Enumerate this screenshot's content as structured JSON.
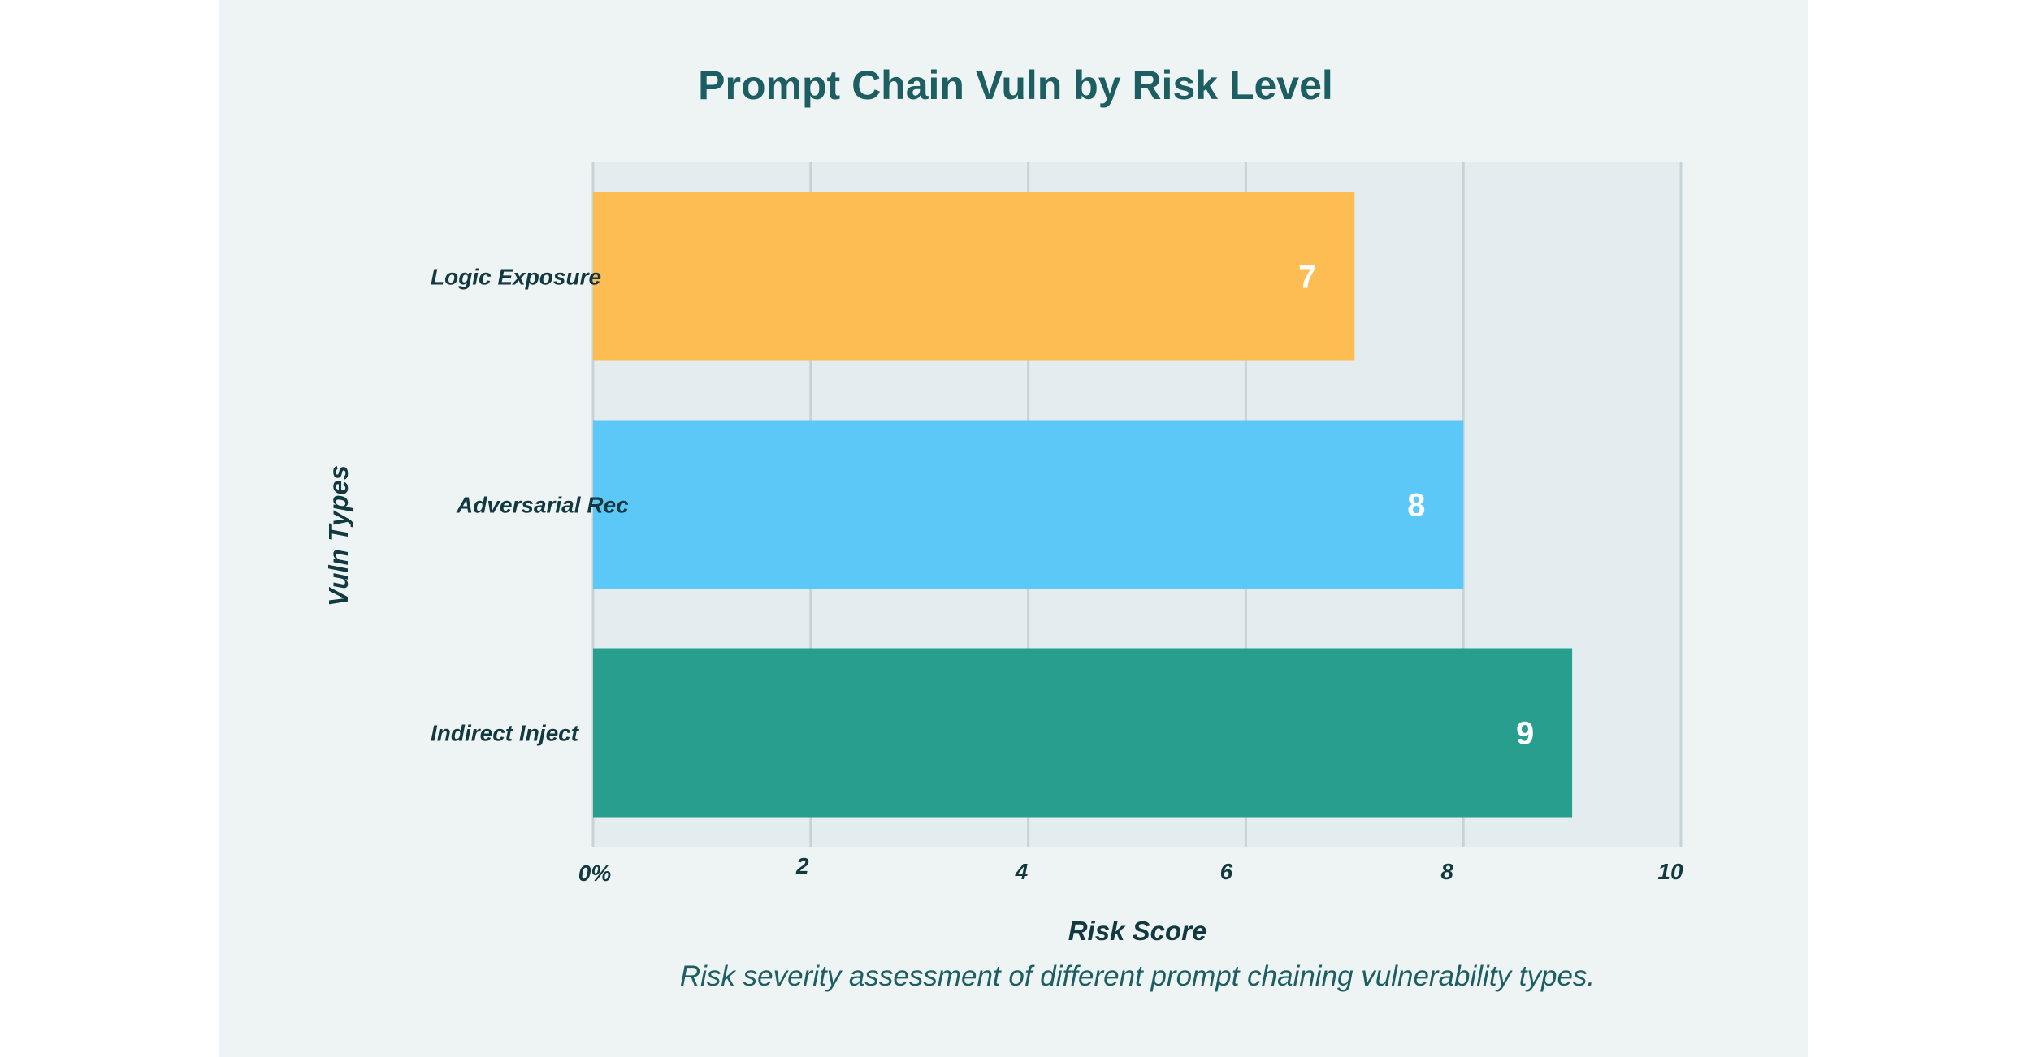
{
  "chart_data": {
    "type": "bar",
    "orientation": "horizontal",
    "title": "Prompt Chain Vuln by Risk Level",
    "xlabel": "Risk Score",
    "ylabel": "Vuln Types",
    "caption": "Risk severity assessment of different prompt chaining vulnerability types.",
    "categories": [
      "Logic Exposure",
      "Adversarial Rec",
      "Indirect Inject"
    ],
    "values": [
      7,
      8,
      9
    ],
    "data_labels": [
      "7",
      "8",
      "9"
    ],
    "colors": [
      "#fdbd52",
      "#5bc8f7",
      "#279e8e"
    ],
    "xlim": [
      0,
      10
    ],
    "x_ticks": [
      0,
      2,
      4,
      6,
      8,
      10
    ],
    "x_tick_labels": [
      "0%",
      "2",
      "4",
      "6",
      "8",
      "10"
    ],
    "grid": "vertical",
    "plot_background": "#e3ecee"
  }
}
